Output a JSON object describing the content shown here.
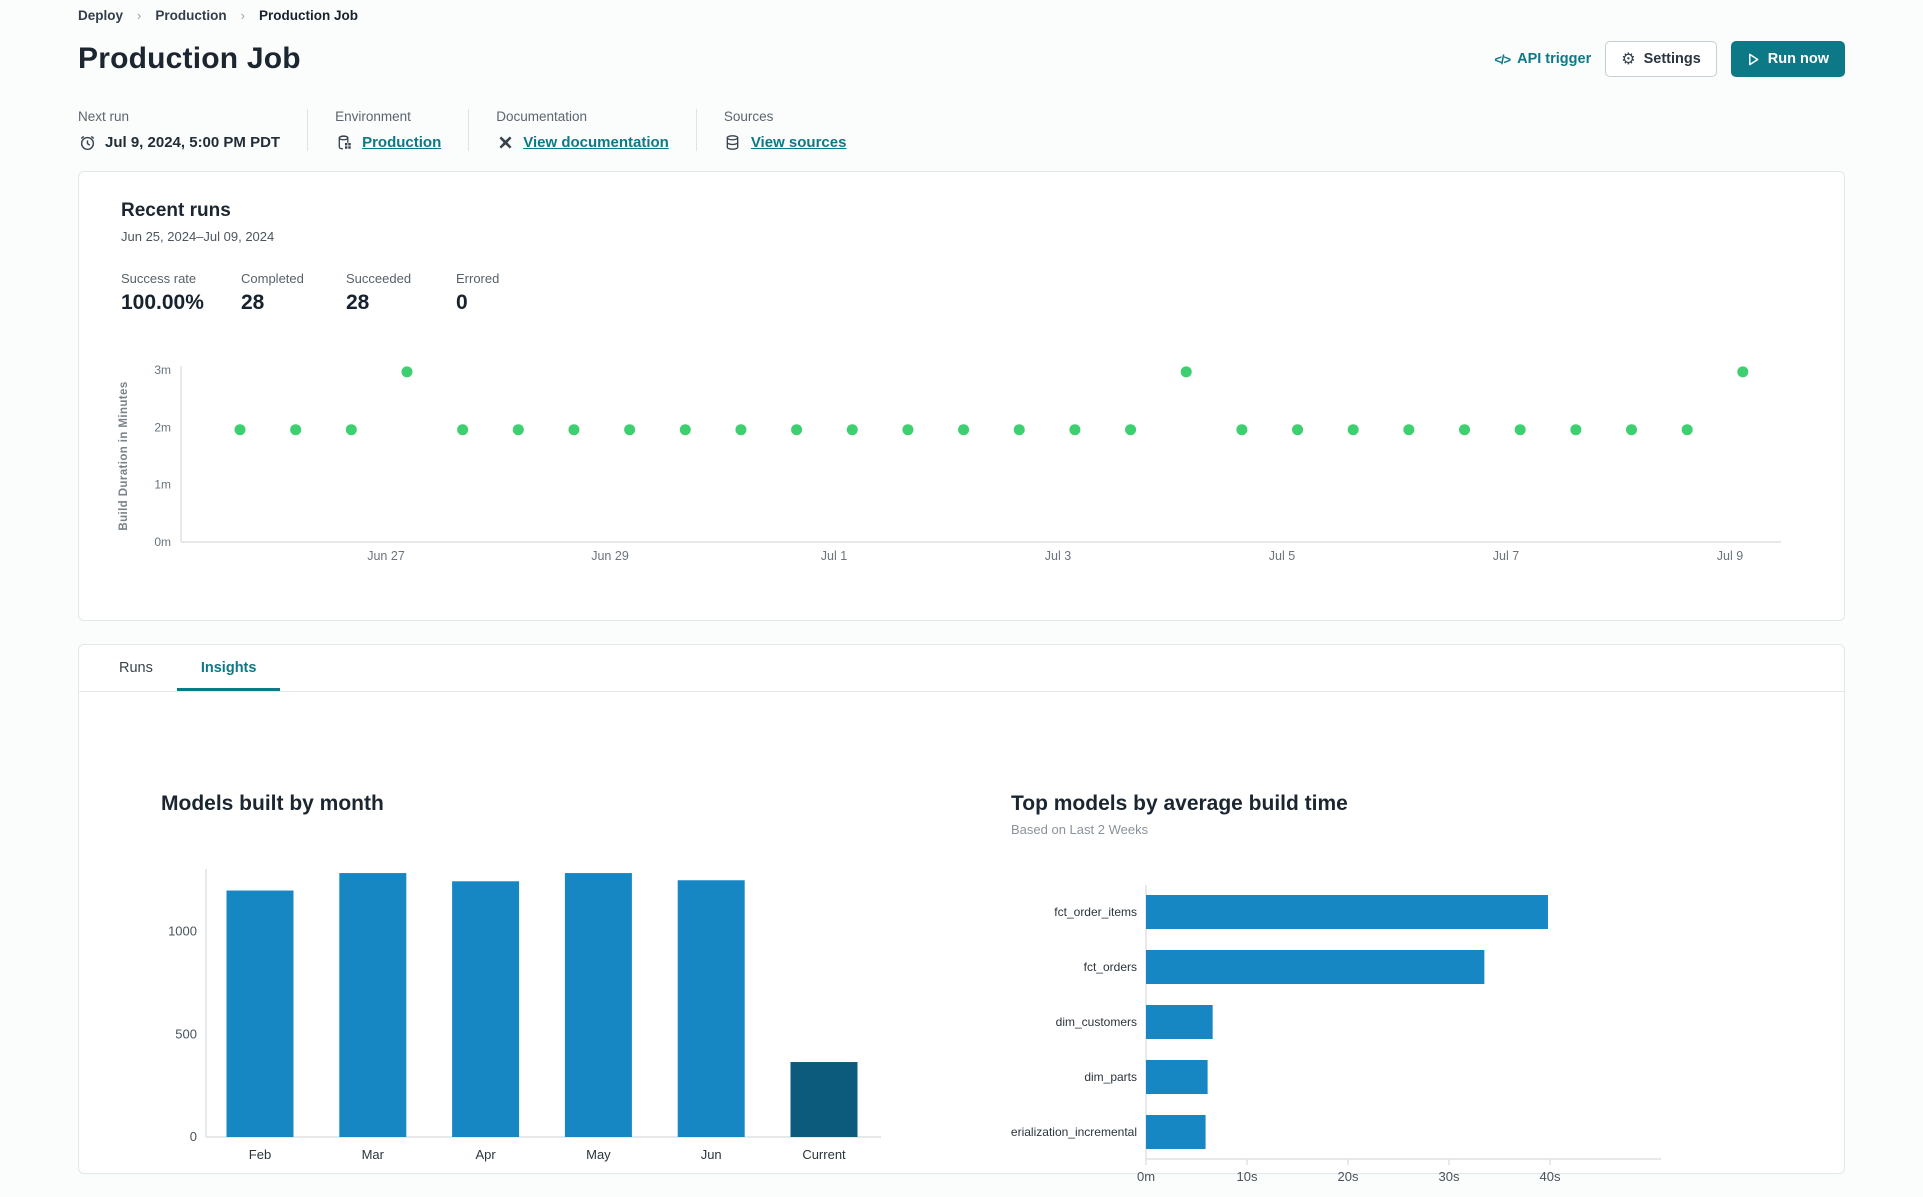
{
  "breadcrumb": {
    "items": [
      "Deploy",
      "Production",
      "Production Job"
    ]
  },
  "header": {
    "title": "Production Job",
    "api_trigger_label": "API trigger",
    "api_trigger_glyph": "</>",
    "settings_label": "Settings",
    "run_now_label": "Run now"
  },
  "info": {
    "next_run": {
      "label": "Next run",
      "value": "Jul 9, 2024, 5:00 PM PDT"
    },
    "environment": {
      "label": "Environment",
      "value": "Production"
    },
    "documentation": {
      "label": "Documentation",
      "value": "View documentation"
    },
    "sources": {
      "label": "Sources",
      "value": "View sources"
    }
  },
  "recent_runs": {
    "title": "Recent runs",
    "date_range": "Jun 25, 2024–Jul 09, 2024",
    "stats": [
      {
        "label": "Success rate",
        "value": "100.00%"
      },
      {
        "label": "Completed",
        "value": "28"
      },
      {
        "label": "Succeeded",
        "value": "28"
      },
      {
        "label": "Errored",
        "value": "0"
      }
    ]
  },
  "tabs": [
    {
      "label": "Runs",
      "active": false
    },
    {
      "label": "Insights",
      "active": true
    }
  ],
  "colors": {
    "accent_teal": "#0d7987",
    "chart_blue": "#1787c4",
    "chart_dark_blue": "#0c5b7d",
    "run_dot_green": "#3ecf70"
  },
  "chart_data": [
    {
      "id": "build-duration-scatter",
      "type": "scatter",
      "ylabel": "Build Duration in Minutes",
      "y_ticks": [
        "0m",
        "1m",
        "2m",
        "3m"
      ],
      "x_ticks": [
        "Jun 27",
        "Jun 29",
        "Jul 1",
        "Jul 3",
        "Jul 5",
        "Jul 7",
        "Jul 9"
      ],
      "ylim": [
        0,
        3
      ],
      "x_range": "Jun 25, 2024 – Jul 09, 2024",
      "point_color": "#3ecf70",
      "grid": false,
      "runs_duration_minutes": [
        1.96,
        1.96,
        1.96,
        2.97,
        1.96,
        1.96,
        1.96,
        1.96,
        1.96,
        1.96,
        1.96,
        1.96,
        1.96,
        1.96,
        1.96,
        1.96,
        1.96,
        2.97,
        1.96,
        1.96,
        1.96,
        1.96,
        1.96,
        1.96,
        1.96,
        1.96,
        1.96,
        2.97
      ]
    },
    {
      "id": "models-built-by-month",
      "type": "bar",
      "title": "Models built by month",
      "categories": [
        "Feb",
        "Mar",
        "Apr",
        "May",
        "Jun",
        "Current"
      ],
      "values": [
        1200,
        1285,
        1245,
        1285,
        1250,
        365
      ],
      "y_ticks": [
        0,
        500,
        1000
      ],
      "ylim": [
        0,
        1300
      ],
      "grid": false,
      "bar_color": "#1787c4",
      "highlight_color": "#0c5b7d",
      "highlight_index": 5
    },
    {
      "id": "top-models-by-average-build-time",
      "type": "hbar",
      "title": "Top models by average build time",
      "subtitle": "Based on Last 2 Weeks",
      "categories": [
        "fct_order_items",
        "fct_orders",
        "dim_customers",
        "dim_parts",
        "materialization_incremental"
      ],
      "values_seconds": [
        39.8,
        33.5,
        6.6,
        6.1,
        5.9
      ],
      "x_ticks": [
        "0m",
        "10s",
        "20s",
        "30s",
        "40s"
      ],
      "xlim": [
        0,
        45
      ],
      "grid": false,
      "bar_color": "#1787c4"
    }
  ]
}
